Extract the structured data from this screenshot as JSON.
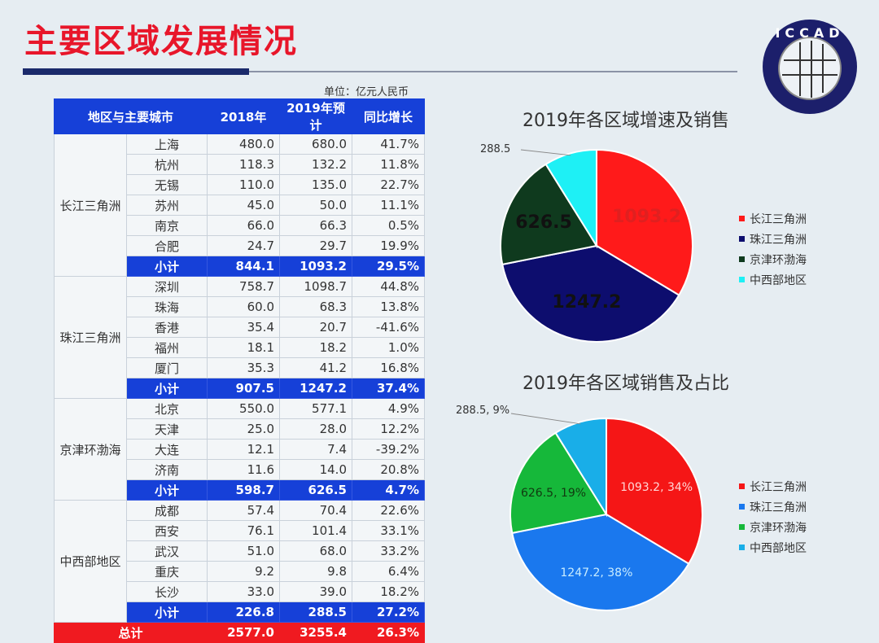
{
  "title": "主要区域发展情况",
  "logo_text": "ICCAD",
  "unit": "单位：亿元人民币",
  "table": {
    "headers": [
      "地区与主要城市",
      "2018年",
      "2019年预计",
      "同比增长"
    ],
    "groups": [
      {
        "region": "长江三角洲",
        "rows": [
          [
            "上海",
            "480.0",
            "680.0",
            "41.7%"
          ],
          [
            "杭州",
            "118.3",
            "132.2",
            "11.8%"
          ],
          [
            "无锡",
            "110.0",
            "135.0",
            "22.7%"
          ],
          [
            "苏州",
            "45.0",
            "50.0",
            "11.1%"
          ],
          [
            "南京",
            "66.0",
            "66.3",
            "0.5%"
          ],
          [
            "合肥",
            "24.7",
            "29.7",
            "19.9%"
          ]
        ],
        "subtotal": [
          "小计",
          "844.1",
          "1093.2",
          "29.5%"
        ]
      },
      {
        "region": "珠江三角洲",
        "rows": [
          [
            "深圳",
            "758.7",
            "1098.7",
            "44.8%"
          ],
          [
            "珠海",
            "60.0",
            "68.3",
            "13.8%"
          ],
          [
            "香港",
            "35.4",
            "20.7",
            "-41.6%"
          ],
          [
            "福州",
            "18.1",
            "18.2",
            "1.0%"
          ],
          [
            "厦门",
            "35.3",
            "41.2",
            "16.8%"
          ]
        ],
        "subtotal": [
          "小计",
          "907.5",
          "1247.2",
          "37.4%"
        ]
      },
      {
        "region": "京津环渤海",
        "rows": [
          [
            "北京",
            "550.0",
            "577.1",
            "4.9%"
          ],
          [
            "天津",
            "25.0",
            "28.0",
            "12.2%"
          ],
          [
            "大连",
            "12.1",
            "7.4",
            "-39.2%"
          ],
          [
            "济南",
            "11.6",
            "14.0",
            "20.8%"
          ]
        ],
        "subtotal": [
          "小计",
          "598.7",
          "626.5",
          "4.7%"
        ]
      },
      {
        "region": "中西部地区",
        "rows": [
          [
            "成都",
            "57.4",
            "70.4",
            "22.6%"
          ],
          [
            "西安",
            "76.1",
            "101.4",
            "33.1%"
          ],
          [
            "武汉",
            "51.0",
            "68.0",
            "33.2%"
          ],
          [
            "重庆",
            "9.2",
            "9.8",
            "6.4%"
          ],
          [
            "长沙",
            "33.0",
            "39.0",
            "18.2%"
          ]
        ],
        "subtotal": [
          "小计",
          "226.8",
          "288.5",
          "27.2%"
        ]
      }
    ],
    "total": [
      "总计",
      "2577.0",
      "3255.4",
      "26.3%"
    ]
  },
  "chart_data": [
    {
      "type": "pie",
      "title": "2019年各区域增速及销售",
      "categories": [
        "长江三角洲",
        "珠江三角洲",
        "京津环渤海",
        "中西部地区"
      ],
      "values": [
        1093.2,
        1247.2,
        626.5,
        288.5
      ],
      "labels": [
        "1093.2",
        "1247.2",
        "626.5",
        "288.5"
      ],
      "colors": [
        "#ff1a1a",
        "#0d0d6e",
        "#0f3a1e",
        "#1ef0f5"
      ],
      "label_colors": [
        "#e02020",
        "#111",
        "#111",
        "#333"
      ],
      "legend": "right"
    },
    {
      "type": "pie",
      "title": "2019年各区域销售及占比",
      "categories": [
        "长江三角洲",
        "珠江三角洲",
        "京津环渤海",
        "中西部地区"
      ],
      "values": [
        1093.2,
        1247.2,
        626.5,
        288.5
      ],
      "labels": [
        "1093.2, 34%",
        "1247.2, 38%",
        "626.5, 19%",
        "288.5, 9%"
      ],
      "colors": [
        "#f51616",
        "#1a78ee",
        "#16b83a",
        "#19aee8"
      ],
      "label_colors": [
        "#ffd6d6",
        "#c8ecff",
        "#113a10",
        "#333"
      ],
      "legend": "right"
    }
  ]
}
